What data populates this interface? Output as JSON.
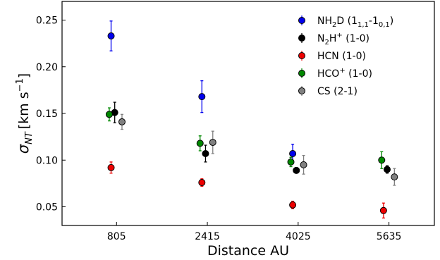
{
  "chart_data": {
    "type": "scatter",
    "title": "",
    "xlabel": "Distance AU",
    "ylabel": "σNT [km s−1]",
    "ylabel_parts": {
      "sigma": "σ",
      "sub": "NT",
      "unit_open": "[km s",
      "unit_exp": "−1",
      "unit_close": "]"
    },
    "categories": [
      "805",
      "2415",
      "4025",
      "5635"
    ],
    "ylim": [
      0.03,
      0.27
    ],
    "yticks": [
      0.05,
      0.1,
      0.15,
      0.2,
      0.25
    ],
    "ytick_labels": [
      "0.05",
      "0.10",
      "0.15",
      "0.20",
      "0.25"
    ],
    "grid": false,
    "legend_position": "top-right",
    "series": [
      {
        "name": "NH2D (11,1-10,1)",
        "legend": {
          "base": "NH",
          "sub1": "2",
          "mid": "D (1",
          "sub2": "1,1",
          "dash": "-1",
          "sub3": "0,1",
          "end": ")"
        },
        "color": "#0000ee",
        "offset": -0.06,
        "values": [
          0.233,
          0.168,
          0.107,
          null
        ],
        "errors": [
          0.016,
          0.017,
          0.01,
          null
        ]
      },
      {
        "name": "N2H+ (1-0)",
        "legend": {
          "base": "N",
          "sub1": "2",
          "mid": "H",
          "sup": "+",
          "end": " (1-0)"
        },
        "color": "#000000",
        "offset": -0.02,
        "values": [
          0.151,
          0.107,
          0.089,
          0.09
        ],
        "errors": [
          0.011,
          0.009,
          0.003,
          0.004
        ]
      },
      {
        "name": "HCN (1-0)",
        "legend": {
          "base": "HCN (1-0)"
        },
        "color": "#ee0000",
        "offset": -0.06,
        "values": [
          0.092,
          0.076,
          0.052,
          0.046
        ],
        "errors": [
          0.006,
          0.004,
          0.004,
          0.008
        ]
      },
      {
        "name": "HCO+ (1-0)",
        "legend": {
          "base": "HCO",
          "sup": "+",
          "end": " (1-0)"
        },
        "color": "#008800",
        "offset": -0.08,
        "values": [
          0.149,
          0.118,
          0.098,
          0.1
        ],
        "errors": [
          0.007,
          0.008,
          0.005,
          0.009
        ]
      },
      {
        "name": "CS (2-1)",
        "legend": {
          "base": "CS (2-1)"
        },
        "color": "#808080",
        "offset": 0.06,
        "values": [
          0.141,
          0.119,
          0.095,
          0.082
        ],
        "errors": [
          0.008,
          0.012,
          0.01,
          0.009
        ]
      }
    ]
  }
}
